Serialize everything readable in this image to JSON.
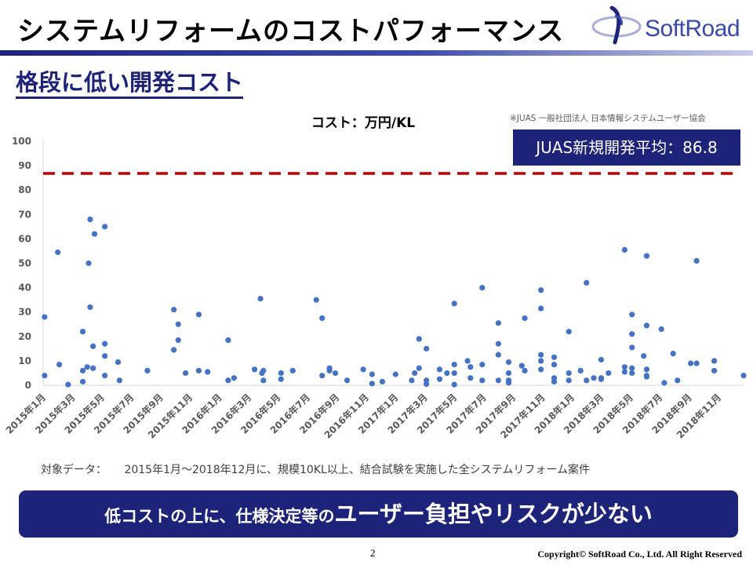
{
  "header": {
    "title": "システムリフォームのコストパフォーマンス",
    "logo_text": "SoftRoad"
  },
  "subtitle": "格段に低い開発コスト",
  "source_note": "※JUAS 一般社団法人 日本情報システムユーザー協会",
  "average_label": "JUAS新規開発平均：86.8",
  "colors": {
    "navy": "#1e237a",
    "points": "#4472c4",
    "average_line": "#c00000"
  },
  "chart_data": {
    "type": "scatter",
    "title": "コスト：万円/KL",
    "ylim": [
      0,
      100
    ],
    "yticks": [
      0,
      10,
      20,
      30,
      40,
      50,
      60,
      70,
      80,
      90,
      100
    ],
    "x_tick_labels": [
      "2015年1月",
      "2015年3月",
      "2015年5月",
      "2015年7月",
      "2015年9月",
      "2015年11月",
      "2016年1月",
      "2016年3月",
      "2016年5月",
      "2016年7月",
      "2016年9月",
      "2016年11月",
      "2017年1月",
      "2017年3月",
      "2017年5月",
      "2017年7月",
      "2017年9月",
      "2017年11月",
      "2018年1月",
      "2018年3月",
      "2018年5月",
      "2018年7月",
      "2018年9月",
      "2018年11月"
    ],
    "x_unit": "months since 2015年1月",
    "grid": false,
    "average_line": {
      "label": "JUAS新規開発平均",
      "value": 86.8
    },
    "series": [
      {
        "points": [
          [
            0.1,
            28
          ],
          [
            0.1,
            4
          ],
          [
            1.0,
            54.5
          ],
          [
            1.1,
            8.5
          ],
          [
            1.7,
            0.3
          ],
          [
            2.7,
            22
          ],
          [
            2.7,
            6
          ],
          [
            2.7,
            1.5
          ],
          [
            3.0,
            7.5
          ],
          [
            3.1,
            50
          ],
          [
            3.2,
            68
          ],
          [
            3.2,
            32
          ],
          [
            3.4,
            16
          ],
          [
            3.4,
            7
          ],
          [
            3.5,
            62
          ],
          [
            4.2,
            65
          ],
          [
            4.2,
            17
          ],
          [
            4.2,
            12
          ],
          [
            4.2,
            4
          ],
          [
            5.1,
            9.5
          ],
          [
            5.2,
            2
          ],
          [
            7.1,
            6
          ],
          [
            8.9,
            31
          ],
          [
            8.9,
            14.5
          ],
          [
            9.2,
            25
          ],
          [
            9.2,
            18.5
          ],
          [
            9.7,
            5
          ],
          [
            10.6,
            29
          ],
          [
            10.6,
            6
          ],
          [
            11.2,
            5.5
          ],
          [
            12.6,
            18.5
          ],
          [
            12.6,
            2
          ],
          [
            13.0,
            3
          ],
          [
            14.4,
            6.5
          ],
          [
            14.8,
            35.5
          ],
          [
            14.9,
            5
          ],
          [
            15.0,
            2
          ],
          [
            15.0,
            6
          ],
          [
            16.2,
            2.5
          ],
          [
            16.2,
            5
          ],
          [
            17.0,
            6
          ],
          [
            18.6,
            35
          ],
          [
            19.0,
            27.5
          ],
          [
            19.0,
            4
          ],
          [
            19.5,
            6
          ],
          [
            19.5,
            7
          ],
          [
            19.9,
            5
          ],
          [
            20.7,
            2
          ],
          [
            21.8,
            6.5
          ],
          [
            22.4,
            4.5
          ],
          [
            22.4,
            0.7
          ],
          [
            23.1,
            1.5
          ],
          [
            24.0,
            4.5
          ],
          [
            25.1,
            2
          ],
          [
            25.3,
            5
          ],
          [
            25.6,
            19
          ],
          [
            25.6,
            7
          ],
          [
            26.1,
            15
          ],
          [
            26.1,
            2
          ],
          [
            26.1,
            0.5
          ],
          [
            27.0,
            6.5
          ],
          [
            27.0,
            2.5
          ],
          [
            27.5,
            5
          ],
          [
            28.0,
            33.5
          ],
          [
            28.0,
            8.5
          ],
          [
            28.0,
            5
          ],
          [
            28.0,
            0.3
          ],
          [
            28.9,
            10
          ],
          [
            29.1,
            7.5
          ],
          [
            29.1,
            3
          ],
          [
            29.9,
            40
          ],
          [
            29.9,
            8.5
          ],
          [
            29.9,
            2
          ],
          [
            31.0,
            25.5
          ],
          [
            31.0,
            17
          ],
          [
            31.0,
            12.5
          ],
          [
            31.0,
            2
          ],
          [
            31.7,
            9.5
          ],
          [
            31.7,
            5
          ],
          [
            31.7,
            2
          ],
          [
            31.7,
            1
          ],
          [
            32.6,
            8
          ],
          [
            32.8,
            27.5
          ],
          [
            32.8,
            6
          ],
          [
            33.9,
            39
          ],
          [
            33.9,
            31.5
          ],
          [
            33.9,
            12.5
          ],
          [
            33.9,
            10
          ],
          [
            33.9,
            6.5
          ],
          [
            34.8,
            11.5
          ],
          [
            34.8,
            8.5
          ],
          [
            34.8,
            3
          ],
          [
            34.8,
            1.5
          ],
          [
            35.8,
            22
          ],
          [
            35.8,
            5
          ],
          [
            35.8,
            2
          ],
          [
            36.6,
            6
          ],
          [
            37.0,
            42
          ],
          [
            37.0,
            2
          ],
          [
            37.5,
            3
          ],
          [
            38.0,
            10.5
          ],
          [
            38.0,
            3
          ],
          [
            38.0,
            2.5
          ],
          [
            38.5,
            5
          ],
          [
            39.6,
            55.5
          ],
          [
            39.6,
            7.5
          ],
          [
            39.6,
            5.5
          ],
          [
            40.1,
            29
          ],
          [
            40.1,
            21
          ],
          [
            40.1,
            15.5
          ],
          [
            40.1,
            7
          ],
          [
            40.1,
            5
          ],
          [
            40.9,
            12
          ],
          [
            41.1,
            53
          ],
          [
            41.1,
            24.5
          ],
          [
            41.1,
            6.5
          ],
          [
            41.1,
            4
          ],
          [
            41.1,
            3.5
          ],
          [
            42.1,
            23
          ],
          [
            42.3,
            1
          ],
          [
            42.9,
            13
          ],
          [
            43.2,
            2
          ],
          [
            44.1,
            9
          ],
          [
            44.5,
            51
          ],
          [
            44.5,
            9
          ],
          [
            45.7,
            6
          ],
          [
            45.7,
            10
          ],
          [
            47.7,
            4
          ]
        ]
      }
    ]
  },
  "target_note": {
    "label": "対象データ：",
    "text": "2015年1月～2018年12月に、規模10KL以上、結合試験を実施した全システムリフォーム案件"
  },
  "banner": {
    "small_text": "低コストの上に、仕様決定等の",
    "big_text": "ユーザー負担やリスクが少ない"
  },
  "footer": {
    "page_number": "2",
    "copyright": "Copyright© SoftRoad Co., Ltd. All Right Reserved"
  }
}
